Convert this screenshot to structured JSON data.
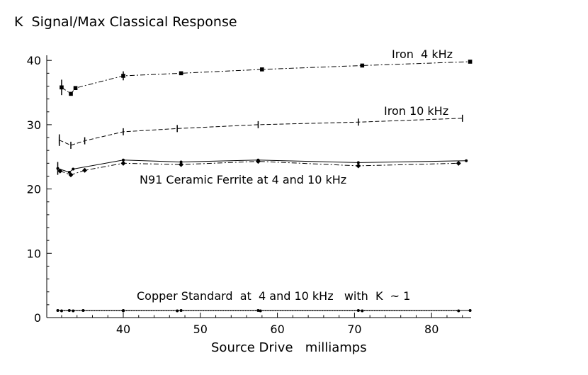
{
  "chart_data": {
    "type": "line",
    "title": "",
    "ylabel": "K  Signal/Max Classical Response",
    "xlabel": "Source Drive   milliamps",
    "xlim": [
      31,
      85
    ],
    "ylim": [
      0,
      41
    ],
    "xticks": [
      40,
      50,
      60,
      70,
      80
    ],
    "yticks": [
      0,
      10,
      20,
      30,
      40
    ],
    "grid": false,
    "series": [
      {
        "name": "Iron  4 kHz",
        "style": "dashdot",
        "marker": "square",
        "points": [
          [
            32,
            35.8
          ],
          [
            33.2,
            34.8
          ],
          [
            33.8,
            35.7
          ],
          [
            40,
            37.6
          ],
          [
            47.5,
            38.0
          ],
          [
            58,
            38.6
          ],
          [
            71,
            39.2
          ],
          [
            85,
            39.8
          ]
        ]
      },
      {
        "name": "Iron 10 kHz",
        "style": "dashed",
        "marker": "tick",
        "points": [
          [
            31.7,
            27.6
          ],
          [
            33.2,
            26.8
          ],
          [
            35,
            27.5
          ],
          [
            40,
            28.9
          ],
          [
            47,
            29.4
          ],
          [
            57.5,
            30.0
          ],
          [
            70.5,
            30.4
          ],
          [
            84,
            31.0
          ]
        ]
      },
      {
        "name": "N91 Ceramic Ferrite at 4 kHz",
        "style": "solid",
        "marker": "dot",
        "points": [
          [
            31.5,
            23.2
          ],
          [
            33,
            22.6
          ],
          [
            33.5,
            23.1
          ],
          [
            40,
            24.5
          ],
          [
            47.5,
            24.2
          ],
          [
            57.5,
            24.5
          ],
          [
            70.5,
            24.1
          ],
          [
            84.5,
            24.4
          ]
        ]
      },
      {
        "name": "N91 Ceramic Ferrite at 10 kHz",
        "style": "dashdot",
        "marker": "diamond",
        "points": [
          [
            31.8,
            22.8
          ],
          [
            33.2,
            22.2
          ],
          [
            35,
            22.9
          ],
          [
            40,
            24.0
          ],
          [
            47.5,
            23.8
          ],
          [
            57.5,
            24.3
          ],
          [
            70.5,
            23.6
          ],
          [
            83.5,
            24.0
          ]
        ]
      },
      {
        "name": "Copper Standard at 4 kHz",
        "style": "solid",
        "marker": "dot",
        "points": [
          [
            31.5,
            1.1
          ],
          [
            33,
            1.1
          ],
          [
            34.8,
            1.1
          ],
          [
            40,
            1.1
          ],
          [
            47.5,
            1.1
          ],
          [
            57.5,
            1.1
          ],
          [
            70.5,
            1.1
          ],
          [
            85,
            1.1
          ]
        ]
      },
      {
        "name": "Copper Standard at 10 kHz",
        "style": "dotted",
        "marker": "dot",
        "points": [
          [
            32,
            1.05
          ],
          [
            33.5,
            1.05
          ],
          [
            40,
            1.05
          ],
          [
            47,
            1.05
          ],
          [
            57.8,
            1.05
          ],
          [
            71,
            1.05
          ],
          [
            83.5,
            1.05
          ]
        ]
      }
    ],
    "annotations": [
      {
        "key": "iron4",
        "text": "Iron  4 kHz"
      },
      {
        "key": "iron10",
        "text": "Iron 10 kHz"
      },
      {
        "key": "ferrite",
        "text": "N91 Ceramic Ferrite at 4 and 10 kHz"
      },
      {
        "key": "copper",
        "text": "Copper Standard  at  4 and 10 kHz   with  K  ~ 1"
      }
    ]
  }
}
